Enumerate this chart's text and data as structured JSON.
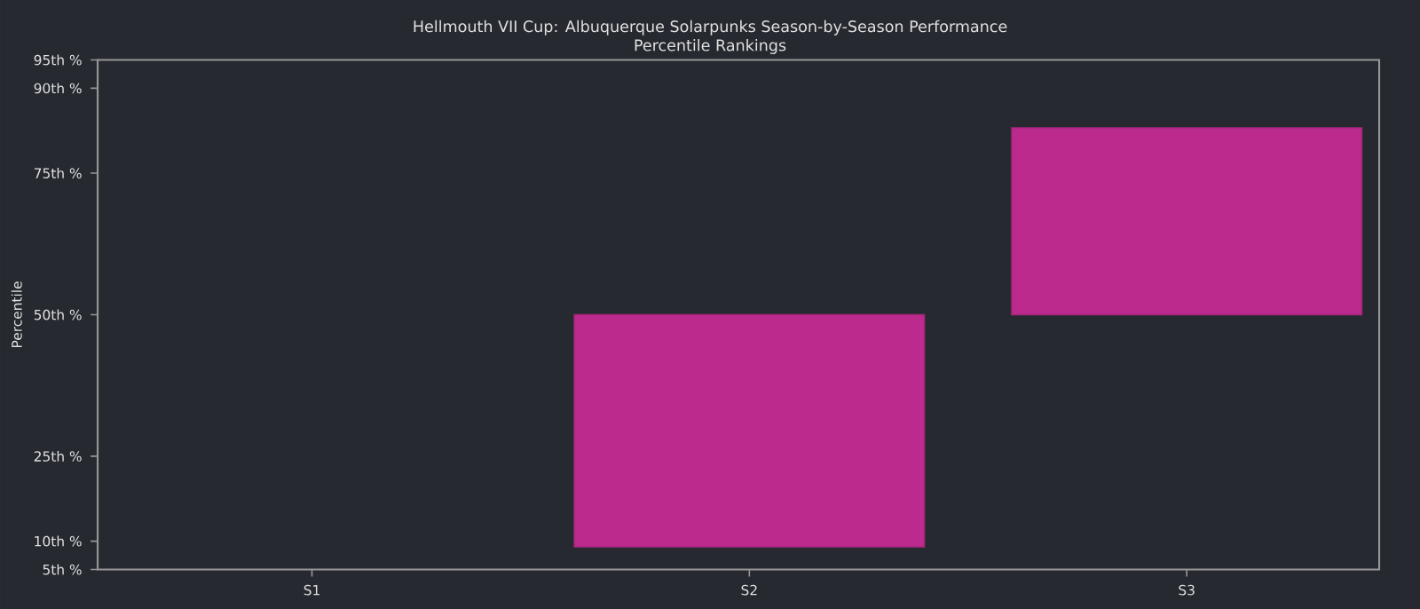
{
  "chart_data": {
    "type": "bar",
    "title": "Hellmouth VII Cup: Albuquerque Solarpunks Season-by-Season Performance",
    "subtitle": "Percentile Rankings",
    "ylabel": "Percentile",
    "categories": [
      "S1",
      "S2",
      "S3"
    ],
    "values": [
      null,
      41,
      33
    ],
    "base": [
      null,
      9,
      50
    ],
    "color": "#bc2a8d",
    "ylim": [
      5,
      95
    ],
    "yticks": [
      {
        "value": 5,
        "label": "5th %"
      },
      {
        "value": 10,
        "label": "10th %"
      },
      {
        "value": 25,
        "label": "25th %"
      },
      {
        "value": 50,
        "label": "50th %"
      },
      {
        "value": 75,
        "label": "75th %"
      },
      {
        "value": 90,
        "label": "90th %"
      },
      {
        "value": 95,
        "label": "95th %"
      }
    ]
  }
}
